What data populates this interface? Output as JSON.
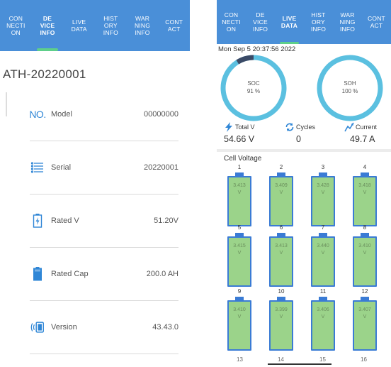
{
  "tabs_left": [
    {
      "label": "CON\nNECTI\nON",
      "active": false
    },
    {
      "label": "DE\nVICE\nINFO",
      "active": true
    },
    {
      "label": "LIVE\nDATA",
      "active": false
    },
    {
      "label": "HIST\nORY\nINFO",
      "active": false
    },
    {
      "label": "WAR\nNING\nINFO",
      "active": false
    },
    {
      "label": "CONT\nACT",
      "active": false
    }
  ],
  "tabs_right": [
    {
      "label": "CON\nNECTI\nON",
      "active": false
    },
    {
      "label": "DE\nVICE\nINFO",
      "active": false
    },
    {
      "label": "LIVE\nDATA",
      "active": true
    },
    {
      "label": "HIST\nORY\nINFO",
      "active": false
    },
    {
      "label": "WAR\nNING\nINFO",
      "active": false
    },
    {
      "label": "CONT\nACT",
      "active": false
    }
  ],
  "device": {
    "title": "ATH-20220001",
    "rows": [
      {
        "icon": "no-icon",
        "icon_text": "NO.",
        "label": "Model",
        "value": "00000000"
      },
      {
        "icon": "list-icon",
        "label": "Serial",
        "value": "20220001"
      },
      {
        "icon": "battery-charging-icon",
        "label": "Rated V",
        "value": "51.20V"
      },
      {
        "icon": "battery-icon",
        "label": "Rated Cap",
        "value": "200.0 AH"
      },
      {
        "icon": "version-icon",
        "label": "Version",
        "value": "43.43.0"
      }
    ]
  },
  "live": {
    "timestamp": "Mon Sep  5 20:37:56 2022",
    "soc": {
      "label": "SOC",
      "value": "91 %",
      "fraction": 0.91
    },
    "soh": {
      "label": "SOH",
      "value": "100 %",
      "fraction": 1.0
    },
    "stats": [
      {
        "icon": "lightning-icon",
        "name": "Total V",
        "value": "54.66 V"
      },
      {
        "icon": "cycle-icon",
        "name": "Cycles",
        "value": "0"
      },
      {
        "icon": "current-icon",
        "name": "Current",
        "value": "49.7 A"
      }
    ],
    "cell_voltage_title": "Cell Voltage",
    "cells": [
      {
        "num": "1",
        "value": "3.413\nV"
      },
      {
        "num": "2",
        "value": "3.409\nV"
      },
      {
        "num": "3",
        "value": "3.428\nV"
      },
      {
        "num": "4",
        "value": "3.418\nV"
      },
      {
        "num": "5",
        "value": "3.415\nV"
      },
      {
        "num": "6",
        "value": "3.413\nV"
      },
      {
        "num": "7",
        "value": "3.440\nV"
      },
      {
        "num": "8",
        "value": "3.410\nV"
      },
      {
        "num": "9",
        "value": "3.410\nV"
      },
      {
        "num": "10",
        "value": "3.399\nV"
      },
      {
        "num": "11",
        "value": "3.406\nV"
      },
      {
        "num": "12",
        "value": "3.407\nV"
      }
    ],
    "partial_nums": [
      "13",
      "14",
      "15",
      "16"
    ]
  },
  "colors": {
    "tab_bg": "#4a8fd8",
    "accent_green": "#5ecf8a",
    "gauge_ring": "#5bc0e0",
    "gauge_soc_remaining": "#3a4a66",
    "battery_fill": "#9bd38a",
    "battery_border": "#3a7bd5"
  }
}
